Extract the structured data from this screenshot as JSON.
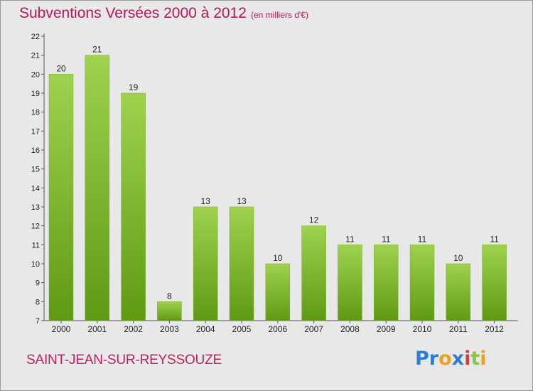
{
  "header": {
    "title": "Subventions Versées 2000 à 2012",
    "subtitle": "(en milliers d'€)"
  },
  "footer": {
    "commune": "SAINT-JEAN-SUR-REYSSOUZE",
    "logo_parts": [
      "Pr",
      "o",
      "x",
      "i",
      "t",
      "i"
    ]
  },
  "colors": {
    "title": "#b0185a",
    "bar_top": "#9fd24e",
    "bar_bottom": "#5f9a14",
    "background": "#e8e8e8"
  },
  "chart_data": {
    "type": "bar",
    "title": "Subventions Versées 2000 à 2012",
    "subtitle": "(en milliers d'€)",
    "categories": [
      "2000",
      "2001",
      "2002",
      "2003",
      "2004",
      "2005",
      "2006",
      "2007",
      "2008",
      "2009",
      "2010",
      "2011",
      "2012"
    ],
    "values": [
      20,
      21,
      19,
      8,
      13,
      13,
      10,
      12,
      11,
      11,
      11,
      10,
      11
    ],
    "ylim": [
      7,
      22
    ],
    "yticks": [
      7,
      8,
      9,
      10,
      11,
      12,
      13,
      14,
      15,
      16,
      17,
      18,
      19,
      20,
      21,
      22
    ],
    "grid": false,
    "legend": "none",
    "xlabel": "",
    "ylabel": ""
  }
}
